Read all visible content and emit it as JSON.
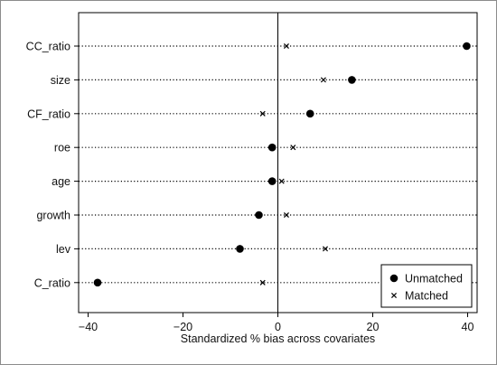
{
  "chart_data": {
    "type": "scatter",
    "title": "",
    "xlabel": "Standardized % bias across covariates",
    "ylabel": "",
    "xlim": [
      -42,
      42
    ],
    "xticks": [
      -40,
      -20,
      0,
      20,
      40
    ],
    "xtick_labels": [
      "−40",
      "−20",
      "0",
      "20",
      "40"
    ],
    "categories": [
      "CC_ratio",
      "size",
      "CF_ratio",
      "roe",
      "age",
      "growth",
      "lev",
      "C_ratio"
    ],
    "series": [
      {
        "name": "Unmatched",
        "marker": "filled-circle",
        "values": [
          39.8,
          15.6,
          6.8,
          -1.2,
          -1.2,
          -4.0,
          -8.0,
          -38.0
        ]
      },
      {
        "name": "Matched",
        "marker": "x",
        "values": [
          1.8,
          9.6,
          -3.2,
          3.2,
          0.8,
          1.8,
          10.0,
          -3.2
        ]
      }
    ],
    "reference_line": 0,
    "grid": "dotted horizontal lines per covariate",
    "legend_position": "bottom-right",
    "colors": {
      "points": "#000000",
      "frame": "#000000",
      "background": "#ffffff",
      "outer_border": "#8c8c8c"
    }
  }
}
